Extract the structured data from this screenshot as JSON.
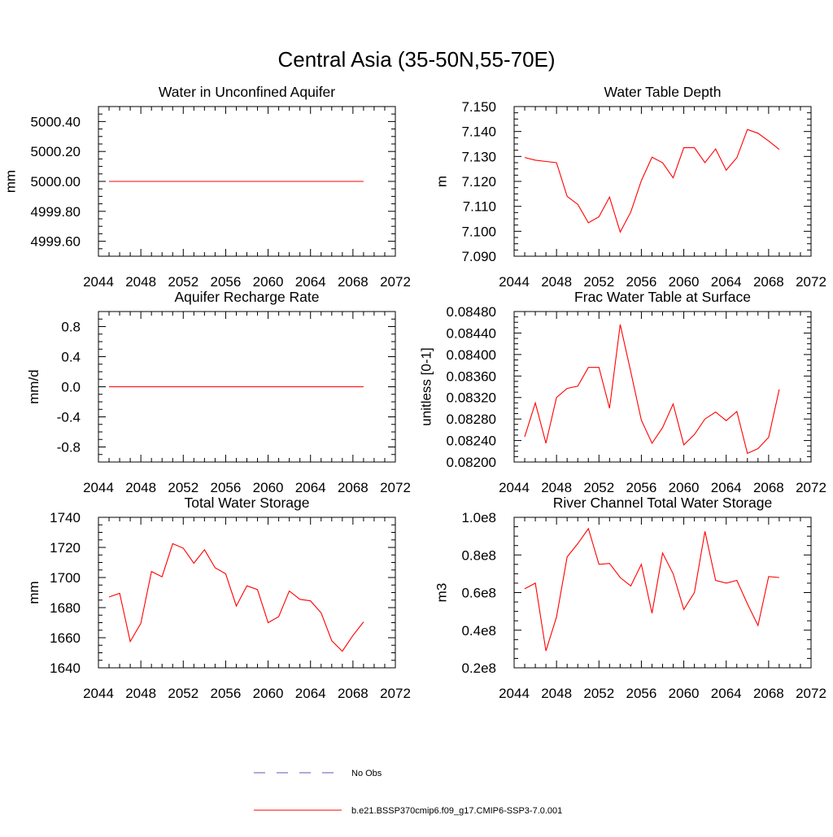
{
  "figure": {
    "title": "Central Asia (35-50N,55-70E)"
  },
  "legend": {
    "entries": [
      {
        "label": "No Obs",
        "color": "#5a5ab4",
        "dash": true
      },
      {
        "label": "b.e21.BSSP370cmip6.f09_g17.CMIP6-SSP3-7.0.001",
        "color": "#ff0000",
        "dash": false
      }
    ]
  },
  "chart_data": [
    {
      "type": "line",
      "title": "Water in Unconfined Aquifer",
      "ylabel": "mm",
      "xlim": [
        2044,
        2072
      ],
      "ylim": [
        4999.5,
        5000.5
      ],
      "xticks": [
        "2044",
        "2048",
        "2052",
        "2056",
        "2060",
        "2064",
        "2068",
        "2072"
      ],
      "yticks": [
        {
          "v": 4999.6,
          "label": "4999.60"
        },
        {
          "v": 4999.8,
          "label": "4999.80"
        },
        {
          "v": 5000.0,
          "label": "5000.00"
        },
        {
          "v": 5000.2,
          "label": "5000.20"
        },
        {
          "v": 5000.4,
          "label": "5000.40"
        }
      ],
      "series": [
        {
          "color": "#ff0000",
          "x": [
            2045,
            2069
          ],
          "y": [
            5000.0,
            5000.0
          ]
        }
      ]
    },
    {
      "type": "line",
      "title": "Water Table Depth",
      "ylabel": "m",
      "xlim": [
        2044,
        2072
      ],
      "ylim": [
        7.09,
        7.15
      ],
      "xticks": [
        "2044",
        "2048",
        "2052",
        "2056",
        "2060",
        "2064",
        "2068",
        "2072"
      ],
      "yticks": [
        {
          "v": 7.09,
          "label": "7.090"
        },
        {
          "v": 7.1,
          "label": "7.100"
        },
        {
          "v": 7.11,
          "label": "7.110"
        },
        {
          "v": 7.12,
          "label": "7.120"
        },
        {
          "v": 7.13,
          "label": "7.130"
        },
        {
          "v": 7.14,
          "label": "7.140"
        },
        {
          "v": 7.15,
          "label": "7.150"
        }
      ],
      "series": [
        {
          "color": "#ff0000",
          "x": [
            2045,
            2046,
            2047,
            2048,
            2049,
            2050,
            2051,
            2052,
            2053,
            2054,
            2055,
            2056,
            2057,
            2058,
            2059,
            2060,
            2061,
            2062,
            2063,
            2064,
            2065,
            2066,
            2067,
            2068,
            2069
          ],
          "y": [
            7.1296,
            7.1285,
            7.128,
            7.1275,
            7.114,
            7.1108,
            7.1034,
            7.1058,
            7.1137,
            7.0997,
            7.1077,
            7.1203,
            7.1297,
            7.1275,
            7.1214,
            7.1335,
            7.1335,
            7.1275,
            7.133,
            7.1245,
            7.1295,
            7.1408,
            7.1393,
            7.1362,
            7.1328
          ]
        }
      ]
    },
    {
      "type": "line",
      "title": "Aquifer Recharge Rate",
      "ylabel": "mm/d",
      "xlim": [
        2044,
        2072
      ],
      "ylim": [
        -1.0,
        1.0
      ],
      "xticks": [
        "2044",
        "2048",
        "2052",
        "2056",
        "2060",
        "2064",
        "2068",
        "2072"
      ],
      "yticks": [
        {
          "v": -0.8,
          "label": "-0.8"
        },
        {
          "v": -0.4,
          "label": "-0.4"
        },
        {
          "v": 0.0,
          "label": "0.0"
        },
        {
          "v": 0.4,
          "label": "0.4"
        },
        {
          "v": 0.8,
          "label": "0.8"
        }
      ],
      "series": [
        {
          "color": "#ff0000",
          "x": [
            2045,
            2069
          ],
          "y": [
            0.0,
            0.0
          ]
        }
      ]
    },
    {
      "type": "line",
      "title": "Frac Water Table at Surface",
      "ylabel": "unitless [0-1]",
      "xlim": [
        2044,
        2072
      ],
      "ylim": [
        0.082,
        0.0848
      ],
      "xticks": [
        "2044",
        "2048",
        "2052",
        "2056",
        "2060",
        "2064",
        "2068",
        "2072"
      ],
      "yticks": [
        {
          "v": 0.082,
          "label": "0.08200"
        },
        {
          "v": 0.0824,
          "label": "0.08240"
        },
        {
          "v": 0.0828,
          "label": "0.08280"
        },
        {
          "v": 0.0832,
          "label": "0.08320"
        },
        {
          "v": 0.0836,
          "label": "0.08360"
        },
        {
          "v": 0.084,
          "label": "0.08400"
        },
        {
          "v": 0.0844,
          "label": "0.08440"
        },
        {
          "v": 0.0848,
          "label": "0.08480"
        }
      ],
      "series": [
        {
          "color": "#ff0000",
          "x": [
            2045,
            2046,
            2047,
            2048,
            2049,
            2050,
            2051,
            2052,
            2053,
            2054,
            2055,
            2056,
            2057,
            2058,
            2059,
            2060,
            2061,
            2062,
            2063,
            2064,
            2065,
            2066,
            2067,
            2068,
            2069
          ],
          "y": [
            0.08247,
            0.0831,
            0.08235,
            0.0832,
            0.08337,
            0.08341,
            0.08376,
            0.08376,
            0.083,
            0.08456,
            0.08368,
            0.08278,
            0.08235,
            0.08264,
            0.08308,
            0.08232,
            0.08251,
            0.0828,
            0.08293,
            0.08277,
            0.08294,
            0.08216,
            0.08225,
            0.08246,
            0.08335
          ]
        }
      ]
    },
    {
      "type": "line",
      "title": "Total Water Storage",
      "ylabel": "mm",
      "xlim": [
        2044,
        2072
      ],
      "ylim": [
        1640,
        1740
      ],
      "xticks": [
        "2044",
        "2048",
        "2052",
        "2056",
        "2060",
        "2064",
        "2068",
        "2072"
      ],
      "yticks": [
        {
          "v": 1640,
          "label": "1640"
        },
        {
          "v": 1660,
          "label": "1660"
        },
        {
          "v": 1680,
          "label": "1680"
        },
        {
          "v": 1700,
          "label": "1700"
        },
        {
          "v": 1720,
          "label": "1720"
        },
        {
          "v": 1740,
          "label": "1740"
        }
      ],
      "series": [
        {
          "color": "#ff0000",
          "x": [
            2045,
            2046,
            2047,
            2048,
            2049,
            2050,
            2051,
            2052,
            2053,
            2054,
            2055,
            2056,
            2057,
            2058,
            2059,
            2060,
            2061,
            2062,
            2063,
            2064,
            2065,
            2066,
            2067,
            2068,
            2069
          ],
          "y": [
            1687,
            1689.5,
            1657.5,
            1669.5,
            1704,
            1700.5,
            1722.5,
            1719.5,
            1709.5,
            1718.5,
            1706.5,
            1702.5,
            1681,
            1694.5,
            1692,
            1670,
            1674,
            1691,
            1685.5,
            1684.5,
            1676.5,
            1658,
            1651,
            1661.5,
            1670.5
          ]
        }
      ]
    },
    {
      "type": "line",
      "title": "River Channel Total Water Storage",
      "ylabel": "m3",
      "xlim": [
        2044,
        2072
      ],
      "ylim": [
        20000000,
        100000000
      ],
      "xticks": [
        "2044",
        "2048",
        "2052",
        "2056",
        "2060",
        "2064",
        "2068",
        "2072"
      ],
      "yticks": [
        {
          "v": 20000000,
          "label": "0.2e8"
        },
        {
          "v": 40000000,
          "label": "0.4e8"
        },
        {
          "v": 60000000,
          "label": "0.6e8"
        },
        {
          "v": 80000000,
          "label": "0.8e8"
        },
        {
          "v": 100000000,
          "label": "1.0e8"
        }
      ],
      "series": [
        {
          "color": "#ff0000",
          "x": [
            2045,
            2046,
            2047,
            2048,
            2049,
            2050,
            2051,
            2052,
            2053,
            2054,
            2055,
            2056,
            2057,
            2058,
            2059,
            2060,
            2061,
            2062,
            2063,
            2064,
            2065,
            2066,
            2067,
            2068,
            2069
          ],
          "y": [
            62000000,
            65000000,
            29000000,
            47000000,
            79000000,
            86000000,
            94000000,
            75000000,
            75500000,
            68000000,
            63500000,
            75000000,
            49000000,
            81000000,
            70000000,
            51000000,
            60000000,
            92500000,
            66500000,
            65000000,
            66500000,
            54000000,
            42500000,
            68500000,
            68000000
          ]
        }
      ]
    }
  ]
}
